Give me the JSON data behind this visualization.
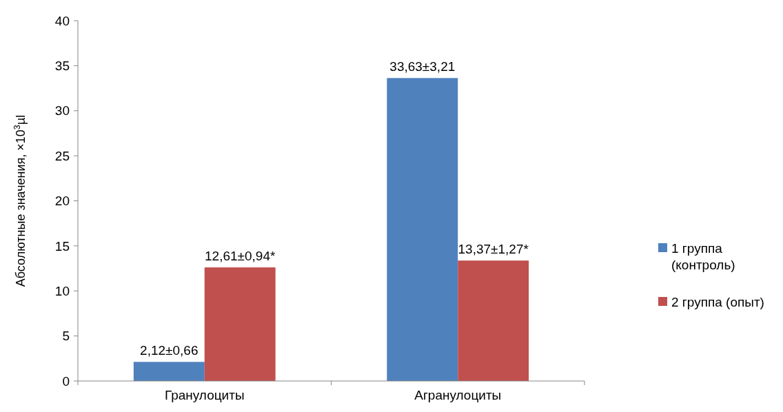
{
  "chart_data": {
    "type": "bar",
    "ylabel": "Абсолютные значения, ×10$^{3}$µl",
    "categories": [
      "Гранулоциты",
      "Агранулоциты"
    ],
    "series": [
      {
        "name": "1 группа (контроль)",
        "color": "#4f81bd",
        "values": [
          2.12,
          33.63
        ],
        "value_labels": [
          "2,12±0,66",
          "33,63±3,21"
        ]
      },
      {
        "name": "2 группа (опыт)",
        "color": "#c0504d",
        "values": [
          12.61,
          13.37
        ],
        "value_labels": [
          "12,61±0,94*",
          "13,37±1,27*"
        ]
      }
    ],
    "ylim": [
      0,
      40
    ],
    "yticks": [
      0,
      5,
      10,
      15,
      20,
      25,
      30,
      35,
      40
    ],
    "grid": false,
    "legend": "right"
  }
}
